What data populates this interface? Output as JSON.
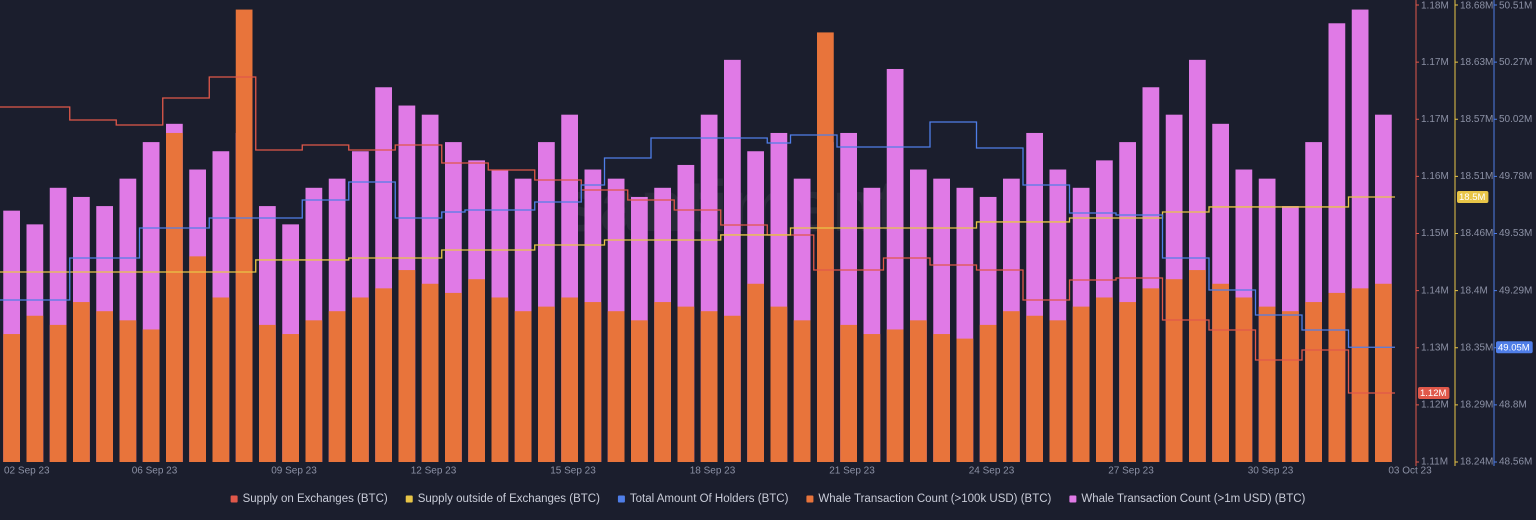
{
  "chart_data": {
    "type": "combo",
    "watermark": "santiment",
    "categories": [
      "02 Sep 23",
      null,
      null,
      null,
      null,
      null,
      "06 Sep 23",
      null,
      null,
      null,
      null,
      null,
      "09 Sep 23",
      null,
      null,
      null,
      null,
      null,
      "12 Sep 23",
      null,
      null,
      null,
      null,
      null,
      "15 Sep 23",
      null,
      null,
      null,
      null,
      null,
      "18 Sep 23",
      null,
      null,
      null,
      null,
      null,
      "21 Sep 23",
      null,
      null,
      null,
      null,
      null,
      "24 Sep 23",
      null,
      null,
      null,
      null,
      null,
      "27 Sep 23",
      null,
      null,
      null,
      null,
      null,
      "30 Sep 23",
      null,
      null,
      null,
      null,
      null,
      "03 Oct 23"
    ],
    "ylim": [
      1114000,
      1182800
    ],
    "yticks": [
      {
        "value": 1114000,
        "label": "1.11M"
      },
      {
        "value": 1122600,
        "label": "1.12M"
      },
      {
        "value": 1131200,
        "label": "1.13M"
      },
      {
        "value": 1139800,
        "label": "1.14M"
      },
      {
        "value": 1148400,
        "label": "1.15M"
      },
      {
        "value": 1157000,
        "label": "1.16M"
      },
      {
        "value": 1165600,
        "label": "1.17M"
      },
      {
        "value": 1174200,
        "label": "1.17M"
      },
      {
        "value": 1182800,
        "label": "1.18M"
      }
    ],
    "y2lim": [
      18238000,
      18680400
    ],
    "y2ticks": [
      {
        "value": 18238000,
        "label": "18.24M"
      },
      {
        "value": 18293300,
        "label": "18.29M"
      },
      {
        "value": 18348600,
        "label": "18.35M"
      },
      {
        "value": 18403900,
        "label": "18.4M"
      },
      {
        "value": 18459200,
        "label": "18.46M"
      },
      {
        "value": 18514500,
        "label": "18.51M"
      },
      {
        "value": 18569800,
        "label": "18.57M"
      },
      {
        "value": 18625100,
        "label": "18.63M"
      },
      {
        "value": 18680400,
        "label": "18.68M"
      }
    ],
    "y3lim": [
      48558000,
      50510000
    ],
    "y3ticks": [
      {
        "value": 48558000,
        "label": "48.56M"
      },
      {
        "value": 48802000,
        "label": "48.8M"
      },
      {
        "value": 49046000,
        "label": "49.05M"
      },
      {
        "value": 49290000,
        "label": "49.29M"
      },
      {
        "value": 49534000,
        "label": "49.53M"
      },
      {
        "value": 49778000,
        "label": "49.78M"
      },
      {
        "value": 50022000,
        "label": "50.02M"
      },
      {
        "value": 50266000,
        "label": "50.27M"
      },
      {
        "value": 50510000,
        "label": "50.51M"
      }
    ],
    "y4lim": [
      0,
      1000
    ],
    "series": [
      {
        "name": "Supply on Exchanges (BTC)",
        "type": "line",
        "axis": "y",
        "color": "#e0584a",
        "last_value_label": "1.12M",
        "values": [
          1167440,
          1167440,
          1167440,
          1165490,
          1165490,
          1164740,
          1164740,
          1168800,
          1168800,
          1171960,
          1171960,
          1160970,
          1160970,
          1161720,
          1161720,
          1160970,
          1160970,
          1161720,
          1161720,
          1159010,
          1159010,
          1157960,
          1157960,
          1156450,
          1156450,
          1154950,
          1154950,
          1153440,
          1153440,
          1151940,
          1151940,
          1149680,
          1149680,
          1148170,
          1148170,
          1142900,
          1142900,
          1142900,
          1144710,
          1144710,
          1143660,
          1143660,
          1142900,
          1142900,
          1138390,
          1138390,
          1141400,
          1141400,
          1141700,
          1141700,
          1135380,
          1135380,
          1133870,
          1133870,
          1129360,
          1129360,
          1130860,
          1130860,
          1124390,
          1124390,
          1124390
        ]
      },
      {
        "name": "Supply outside of Exchanges (BTC)",
        "type": "line",
        "axis": "y2",
        "color": "#e8c547",
        "last_value_label": "18.5M",
        "values": [
          18421900,
          18421900,
          18421900,
          18421900,
          18421900,
          18421900,
          18421900,
          18421900,
          18421900,
          18421900,
          18421900,
          18433600,
          18433600,
          18433600,
          18433600,
          18435500,
          18435500,
          18435500,
          18435500,
          18443200,
          18443200,
          18443200,
          18443200,
          18448100,
          18448100,
          18448100,
          18452900,
          18452900,
          18452900,
          18452900,
          18452900,
          18457800,
          18457800,
          18457800,
          18464500,
          18464500,
          18464500,
          18464500,
          18464500,
          18464500,
          18464500,
          18464500,
          18470400,
          18470400,
          18470400,
          18470400,
          18474200,
          18474200,
          18474200,
          18474200,
          18480000,
          18480000,
          18484900,
          18484900,
          18484900,
          18484900,
          18484900,
          18484900,
          18494500,
          18494500,
          18494500
        ]
      },
      {
        "name": "Total Amount Of Holders (BTC)",
        "type": "line",
        "axis": "y3",
        "color": "#4f7ee8",
        "last_value_label": "49.05M",
        "values": [
          49250000,
          49250000,
          49250000,
          49429400,
          49429400,
          49429400,
          49557500,
          49557500,
          49557500,
          49600200,
          49600200,
          49600200,
          49600200,
          49677100,
          49677100,
          49754000,
          49754000,
          49600200,
          49600200,
          49625800,
          49634400,
          49634400,
          49634400,
          49668600,
          49668600,
          49741200,
          49856500,
          49856500,
          49941900,
          49941900,
          49941900,
          49941900,
          49941900,
          49920600,
          49954700,
          49954700,
          49903500,
          49903500,
          49903500,
          49903500,
          50010300,
          50010300,
          49899200,
          49899200,
          49741200,
          49741200,
          49621600,
          49621600,
          49613000,
          49613000,
          49429400,
          49429400,
          49292700,
          49292700,
          49185900,
          49185900,
          49121900,
          49121900,
          49048000,
          49048000,
          49048000
        ]
      },
      {
        "name": "Whale Transaction Count (>1m USD) (BTC)",
        "type": "bar",
        "axis": "y4",
        "color": "#e07ae6",
        "values": [
          550,
          520,
          600,
          580,
          560,
          620,
          700,
          740,
          640,
          680,
          720,
          560,
          520,
          600,
          620,
          680,
          820,
          780,
          760,
          700,
          660,
          640,
          620,
          700,
          760,
          640,
          620,
          580,
          600,
          650,
          760,
          880,
          680,
          720,
          620,
          700,
          720,
          600,
          860,
          640,
          620,
          600,
          580,
          620,
          720,
          640,
          600,
          660,
          700,
          820,
          760,
          880,
          740,
          640,
          620,
          560,
          700,
          960,
          990,
          760,
          null
        ]
      },
      {
        "name": "Whale Transaction Count (>100k USD) (BTC)",
        "type": "bar",
        "axis": "y4",
        "color": "#e8743b",
        "values": [
          280,
          320,
          300,
          350,
          330,
          310,
          290,
          720,
          450,
          360,
          990,
          300,
          280,
          310,
          330,
          360,
          380,
          420,
          390,
          370,
          400,
          360,
          330,
          340,
          360,
          350,
          330,
          310,
          350,
          340,
          330,
          320,
          390,
          340,
          310,
          940,
          300,
          280,
          290,
          310,
          280,
          270,
          300,
          330,
          320,
          310,
          340,
          360,
          350,
          380,
          400,
          420,
          390,
          360,
          340,
          330,
          350,
          370,
          380,
          390,
          null
        ]
      }
    ],
    "legend_order": [
      0,
      1,
      2,
      4,
      3
    ]
  }
}
